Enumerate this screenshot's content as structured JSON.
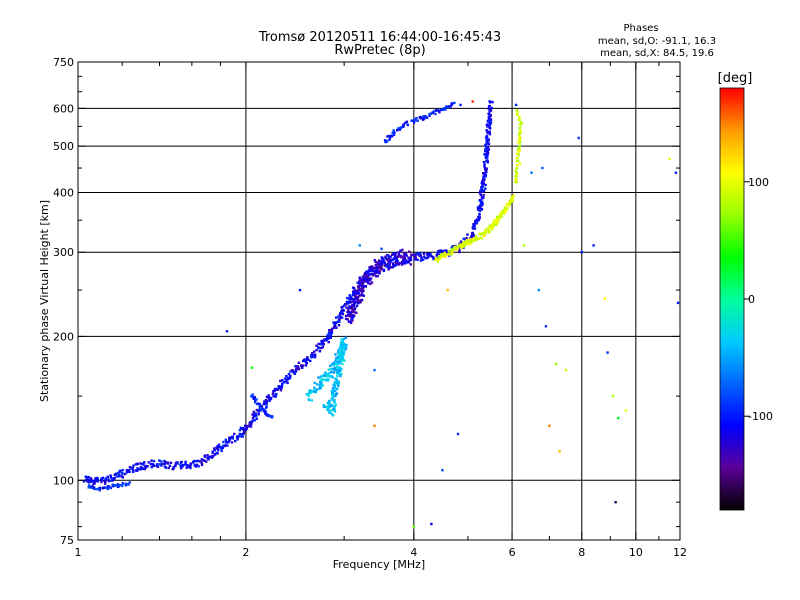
{
  "header": {
    "title": "Tromsø 20120511 16:44:00-16:45:43",
    "subtitle": "RwPretec (8p)",
    "phases_title": "Phases",
    "phases_o": "mean, sd,O: -91.1, 16.3",
    "phases_x": "mean, sd,X: 84.5, 19.6"
  },
  "chart_data": {
    "type": "scatter",
    "xlabel": "Frequency [MHz]",
    "ylabel": "Stationary phase Virtual Height [km]",
    "x_scale": "log",
    "y_scale": "log",
    "xlim": [
      1,
      12
    ],
    "ylim": [
      75,
      750
    ],
    "x_ticks": [
      {
        "v": 1,
        "label": "1"
      },
      {
        "v": 2,
        "label": "2"
      },
      {
        "v": 4,
        "label": "4"
      },
      {
        "v": 6,
        "label": "6"
      },
      {
        "v": 8,
        "label": "8"
      },
      {
        "v": 10,
        "label": "10"
      },
      {
        "v": 12,
        "label": "12"
      }
    ],
    "x_grid": [
      2,
      4,
      6,
      8,
      10
    ],
    "x_minor": [
      1.2,
      1.4,
      1.6,
      1.8,
      3,
      5,
      7,
      9,
      11
    ],
    "y_ticks": [
      {
        "v": 75,
        "label": "75"
      },
      {
        "v": 100,
        "label": "100"
      },
      {
        "v": 200,
        "label": "200"
      },
      {
        "v": 300,
        "label": "300"
      },
      {
        "v": 400,
        "label": "400"
      },
      {
        "v": 500,
        "label": "500"
      },
      {
        "v": 600,
        "label": "600"
      },
      {
        "v": 750,
        "label": "750"
      }
    ],
    "y_grid": [
      100,
      200,
      300,
      400,
      500,
      600
    ],
    "y_minor": [
      80,
      90,
      150,
      250,
      350,
      450,
      550,
      650,
      700
    ],
    "colorbar": {
      "label": "[deg]",
      "range": [
        -180,
        180
      ],
      "ticks": [
        {
          "v": 100,
          "label": "100"
        },
        {
          "v": 0,
          "label": "0"
        },
        {
          "v": -100,
          "label": "-100"
        }
      ],
      "stops": [
        "#000000",
        "#5a0099",
        "#0000ff",
        "#0066ff",
        "#00ccff",
        "#00ff99",
        "#00ff00",
        "#99ff00",
        "#ffff00",
        "#ff9900",
        "#ff0000"
      ]
    },
    "traces": [
      {
        "name": "",
        "phase": -110,
        "pts": [
          [
            1.03,
            101
          ],
          [
            1.06,
            99
          ],
          [
            1.1,
            100
          ],
          [
            1.14,
            101
          ],
          [
            1.18,
            102
          ],
          [
            1.22,
            104
          ],
          [
            1.26,
            106
          ],
          [
            1.3,
            107
          ],
          [
            1.36,
            108
          ],
          [
            1.42,
            108
          ],
          [
            1.5,
            107
          ],
          [
            1.58,
            108
          ],
          [
            1.66,
            109
          ],
          [
            1.72,
            112
          ],
          [
            1.78,
            116
          ],
          [
            1.84,
            120
          ],
          [
            1.9,
            122
          ],
          [
            1.96,
            125
          ],
          [
            2.02,
            130
          ],
          [
            2.1,
            138
          ],
          [
            2.18,
            146
          ],
          [
            2.26,
            154
          ],
          [
            2.34,
            160
          ],
          [
            2.42,
            168
          ],
          [
            2.52,
            175
          ],
          [
            2.62,
            182
          ],
          [
            2.72,
            190
          ],
          [
            2.82,
            200
          ],
          [
            2.92,
            215
          ],
          [
            3.0,
            230
          ],
          [
            3.1,
            245
          ],
          [
            3.2,
            258
          ],
          [
            3.3,
            268
          ],
          [
            3.42,
            276
          ],
          [
            3.56,
            282
          ],
          [
            3.7,
            287
          ],
          [
            3.86,
            290
          ],
          [
            4.0,
            292
          ],
          [
            4.2,
            294
          ],
          [
            4.4,
            296
          ],
          [
            4.6,
            300
          ],
          [
            4.8,
            306
          ],
          [
            5.0,
            318
          ],
          [
            5.1,
            330
          ],
          [
            5.2,
            350
          ],
          [
            5.28,
            380
          ],
          [
            5.34,
            420
          ],
          [
            5.4,
            480
          ],
          [
            5.45,
            560
          ],
          [
            5.5,
            620
          ]
        ],
        "jitter": [
          0.02,
          0.04
        ],
        "copies": 4
      },
      {
        "name": "",
        "phase": -125,
        "pts": [
          [
            3.05,
            220
          ],
          [
            3.15,
            240
          ],
          [
            3.25,
            260
          ],
          [
            3.35,
            270
          ],
          [
            3.45,
            280
          ],
          [
            3.55,
            285
          ],
          [
            3.65,
            288
          ],
          [
            3.8,
            292
          ],
          [
            3.95,
            295
          ]
        ],
        "jitter": [
          0.04,
          0.08
        ],
        "copies": 8
      },
      {
        "name": "",
        "phase": -40,
        "pts": [
          [
            2.6,
            150
          ],
          [
            2.7,
            158
          ],
          [
            2.8,
            165
          ],
          [
            2.9,
            175
          ],
          [
            2.95,
            185
          ],
          [
            3.0,
            195
          ],
          [
            2.85,
            140
          ],
          [
            2.75,
            145
          ]
        ],
        "jitter": [
          0.03,
          0.06
        ],
        "copies": 5
      },
      {
        "name": "",
        "phase": 95,
        "pts": [
          [
            4.4,
            290
          ],
          [
            4.6,
            298
          ],
          [
            4.8,
            306
          ],
          [
            5.0,
            315
          ],
          [
            5.2,
            322
          ],
          [
            5.4,
            330
          ],
          [
            5.6,
            345
          ],
          [
            5.8,
            365
          ],
          [
            5.95,
            380
          ],
          [
            6.05,
            395
          ]
        ],
        "jitter": [
          0.015,
          0.025
        ],
        "copies": 5
      },
      {
        "name": "",
        "phase": -100,
        "pts": [
          [
            3.55,
            510
          ],
          [
            3.7,
            535
          ],
          [
            3.85,
            555
          ],
          [
            4.0,
            565
          ],
          [
            4.2,
            575
          ],
          [
            4.4,
            590
          ],
          [
            4.6,
            605
          ],
          [
            4.75,
            615
          ]
        ],
        "jitter": [
          0.015,
          0.02
        ],
        "copies": 3
      },
      {
        "name": "",
        "phase": -95,
        "pts": [
          [
            1.05,
            97
          ],
          [
            1.1,
            96
          ],
          [
            1.15,
            97
          ],
          [
            1.2,
            98
          ],
          [
            1.25,
            99
          ]
        ],
        "jitter": [
          0.015,
          0.015
        ],
        "copies": 3
      },
      {
        "name": "",
        "phase": -100,
        "pts": [
          [
            2.05,
            150
          ],
          [
            2.1,
            145
          ],
          [
            2.15,
            140
          ],
          [
            2.2,
            136
          ],
          [
            2.25,
            135
          ]
        ],
        "jitter": [
          0.01,
          0.015
        ],
        "copies": 3
      },
      {
        "name": "",
        "phase": 90,
        "pts": [
          [
            6.1,
            420
          ],
          [
            6.12,
            450
          ],
          [
            6.15,
            480
          ],
          [
            6.18,
            500
          ],
          [
            6.2,
            530
          ],
          [
            6.22,
            560
          ],
          [
            6.1,
            600
          ]
        ],
        "jitter": [
          0.01,
          0.01
        ],
        "copies": 2
      }
    ],
    "scatter_points": [
      {
        "x": 6.3,
        "y": 310,
        "phase": 80
      },
      {
        "x": 6.7,
        "y": 250,
        "phase": -60
      },
      {
        "x": 6.9,
        "y": 210,
        "phase": -90
      },
      {
        "x": 7.2,
        "y": 175,
        "phase": 70
      },
      {
        "x": 7.0,
        "y": 130,
        "phase": 150
      },
      {
        "x": 7.3,
        "y": 115,
        "phase": 130
      },
      {
        "x": 7.5,
        "y": 170,
        "phase": 90
      },
      {
        "x": 8.0,
        "y": 300,
        "phase": -100
      },
      {
        "x": 8.4,
        "y": 310,
        "phase": -95
      },
      {
        "x": 8.8,
        "y": 240,
        "phase": 110
      },
      {
        "x": 8.9,
        "y": 185,
        "phase": -90
      },
      {
        "x": 9.1,
        "y": 150,
        "phase": 80
      },
      {
        "x": 9.3,
        "y": 135,
        "phase": 30
      },
      {
        "x": 9.6,
        "y": 140,
        "phase": 100
      },
      {
        "x": 9.2,
        "y": 90,
        "phase": -160
      },
      {
        "x": 11.5,
        "y": 470,
        "phase": 100
      },
      {
        "x": 11.8,
        "y": 440,
        "phase": -100
      },
      {
        "x": 11.9,
        "y": 235,
        "phase": -100
      },
      {
        "x": 6.2,
        "y": 460,
        "phase": 110
      },
      {
        "x": 6.5,
        "y": 440,
        "phase": -70
      },
      {
        "x": 6.8,
        "y": 450,
        "phase": -80
      },
      {
        "x": 7.9,
        "y": 520,
        "phase": -90
      },
      {
        "x": 6.1,
        "y": 610,
        "phase": -95
      },
      {
        "x": 5.1,
        "y": 620,
        "phase": 170
      },
      {
        "x": 4.85,
        "y": 610,
        "phase": -100
      },
      {
        "x": 4.5,
        "y": 105,
        "phase": -80
      },
      {
        "x": 4.0,
        "y": 80,
        "phase": 60
      },
      {
        "x": 4.3,
        "y": 81,
        "phase": -110
      },
      {
        "x": 3.4,
        "y": 170,
        "phase": -70
      },
      {
        "x": 3.4,
        "y": 130,
        "phase": 150
      },
      {
        "x": 4.8,
        "y": 125,
        "phase": -90
      },
      {
        "x": 4.6,
        "y": 250,
        "phase": 130
      },
      {
        "x": 1.85,
        "y": 205,
        "phase": -100
      },
      {
        "x": 2.05,
        "y": 172,
        "phase": 40
      },
      {
        "x": 2.5,
        "y": 250,
        "phase": -100
      },
      {
        "x": 3.5,
        "y": 305,
        "phase": -80
      },
      {
        "x": 3.6,
        "y": 295,
        "phase": -90
      },
      {
        "x": 3.2,
        "y": 310,
        "phase": -60
      }
    ]
  }
}
